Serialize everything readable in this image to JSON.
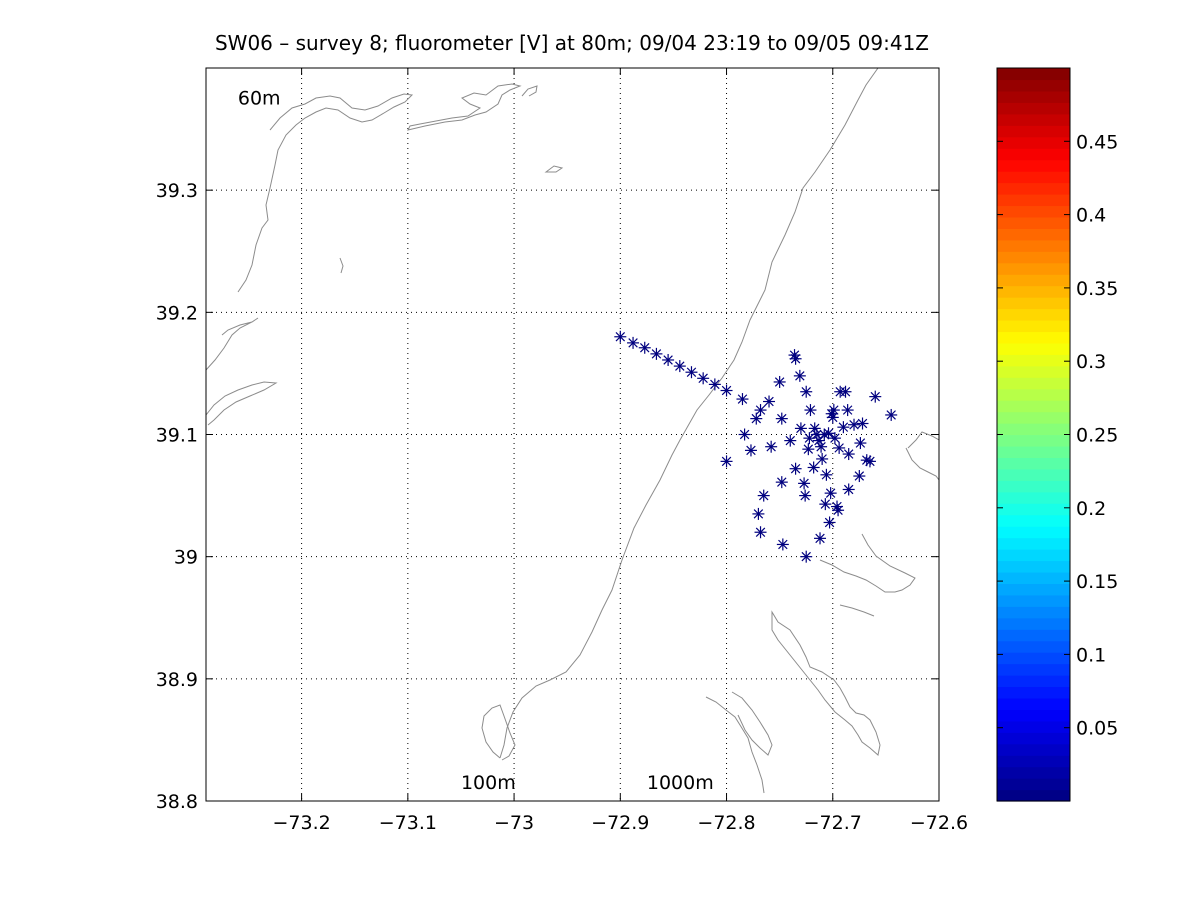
{
  "chart_data": {
    "type": "scatter",
    "title": "SW06 – survey 8; fluorometer [V] at 80m; 09/04 23:19 to 09/05 09:41Z",
    "xlabel": "",
    "ylabel": "",
    "xlim": [
      -73.29,
      -72.6
    ],
    "ylim": [
      38.8,
      39.4
    ],
    "x_ticks": [
      -73.2,
      -73.1,
      -73.0,
      -72.9,
      -72.8,
      -72.7,
      -72.6
    ],
    "x_tick_labels": [
      "−73.2",
      "−73.1",
      "−73",
      "−72.9",
      "−72.8",
      "−72.7",
      "−72.6"
    ],
    "y_ticks": [
      38.8,
      38.9,
      39.0,
      39.1,
      39.2,
      39.3
    ],
    "y_tick_labels": [
      "38.8",
      "38.9",
      "39",
      "39.1",
      "39.2",
      "39.3"
    ],
    "grid": true,
    "marker": "*",
    "marker_color": "#00007f",
    "contour_color": "#8c8c8c",
    "annotations": [
      {
        "text": "60m",
        "x": -73.26,
        "y": 39.37
      },
      {
        "text": "100m",
        "x": -73.05,
        "y": 38.81
      },
      {
        "text": "1000m",
        "x": -72.875,
        "y": 38.81
      }
    ],
    "points": [
      {
        "x": -72.9,
        "y": 39.18
      },
      {
        "x": -72.888,
        "y": 39.175
      },
      {
        "x": -72.877,
        "y": 39.171
      },
      {
        "x": -72.866,
        "y": 39.166
      },
      {
        "x": -72.855,
        "y": 39.161
      },
      {
        "x": -72.844,
        "y": 39.156
      },
      {
        "x": -72.833,
        "y": 39.151
      },
      {
        "x": -72.822,
        "y": 39.146
      },
      {
        "x": -72.811,
        "y": 39.141
      },
      {
        "x": -72.8,
        "y": 39.136
      },
      {
        "x": -72.8,
        "y": 39.078
      },
      {
        "x": -72.785,
        "y": 39.129
      },
      {
        "x": -72.783,
        "y": 39.1
      },
      {
        "x": -72.777,
        "y": 39.087
      },
      {
        "x": -72.772,
        "y": 39.113
      },
      {
        "x": -72.77,
        "y": 39.035
      },
      {
        "x": -72.768,
        "y": 39.02
      },
      {
        "x": -72.768,
        "y": 39.12
      },
      {
        "x": -72.765,
        "y": 39.05
      },
      {
        "x": -72.76,
        "y": 39.127
      },
      {
        "x": -72.758,
        "y": 39.09
      },
      {
        "x": -72.75,
        "y": 39.143
      },
      {
        "x": -72.748,
        "y": 39.113
      },
      {
        "x": -72.748,
        "y": 39.061
      },
      {
        "x": -72.747,
        "y": 39.01
      },
      {
        "x": -72.74,
        "y": 39.095
      },
      {
        "x": -72.736,
        "y": 39.165
      },
      {
        "x": -72.735,
        "y": 39.162
      },
      {
        "x": -72.735,
        "y": 39.072
      },
      {
        "x": -72.731,
        "y": 39.148
      },
      {
        "x": -72.73,
        "y": 39.105
      },
      {
        "x": -72.727,
        "y": 39.06
      },
      {
        "x": -72.726,
        "y": 39.05
      },
      {
        "x": -72.725,
        "y": 39.0
      },
      {
        "x": -72.725,
        "y": 39.135
      },
      {
        "x": -72.723,
        "y": 39.088
      },
      {
        "x": -72.722,
        "y": 39.097
      },
      {
        "x": -72.721,
        "y": 39.12
      },
      {
        "x": -72.718,
        "y": 39.073
      },
      {
        "x": -72.717,
        "y": 39.105
      },
      {
        "x": -72.715,
        "y": 39.1
      },
      {
        "x": -72.713,
        "y": 39.095
      },
      {
        "x": -72.712,
        "y": 39.015
      },
      {
        "x": -72.711,
        "y": 39.09
      },
      {
        "x": -72.71,
        "y": 39.08
      },
      {
        "x": -72.708,
        "y": 39.1
      },
      {
        "x": -72.707,
        "y": 39.043
      },
      {
        "x": -72.706,
        "y": 39.067
      },
      {
        "x": -72.704,
        "y": 39.101
      },
      {
        "x": -72.703,
        "y": 39.028
      },
      {
        "x": -72.702,
        "y": 39.052
      },
      {
        "x": -72.701,
        "y": 39.117
      },
      {
        "x": -72.7,
        "y": 39.114
      },
      {
        "x": -72.699,
        "y": 39.12
      },
      {
        "x": -72.698,
        "y": 39.097
      },
      {
        "x": -72.696,
        "y": 39.041
      },
      {
        "x": -72.695,
        "y": 39.038
      },
      {
        "x": -72.694,
        "y": 39.089
      },
      {
        "x": -72.693,
        "y": 39.135
      },
      {
        "x": -72.69,
        "y": 39.106
      },
      {
        "x": -72.688,
        "y": 39.135
      },
      {
        "x": -72.686,
        "y": 39.12
      },
      {
        "x": -72.685,
        "y": 39.084
      },
      {
        "x": -72.685,
        "y": 39.055
      },
      {
        "x": -72.68,
        "y": 39.108
      },
      {
        "x": -72.675,
        "y": 39.066
      },
      {
        "x": -72.674,
        "y": 39.093
      },
      {
        "x": -72.672,
        "y": 39.109
      },
      {
        "x": -72.668,
        "y": 39.079
      },
      {
        "x": -72.665,
        "y": 39.078
      },
      {
        "x": -72.66,
        "y": 39.131
      },
      {
        "x": -72.645,
        "y": 39.116
      }
    ],
    "colorbar": {
      "min": 0.0,
      "max": 0.5,
      "ticks": [
        0.05,
        0.1,
        0.15,
        0.2,
        0.25,
        0.3,
        0.35,
        0.4,
        0.45
      ],
      "tick_labels": [
        "0.05",
        "0.1",
        "0.15",
        "0.2",
        "0.25",
        "0.3",
        "0.35",
        "0.4",
        "0.45"
      ],
      "colormap": "jet"
    }
  }
}
